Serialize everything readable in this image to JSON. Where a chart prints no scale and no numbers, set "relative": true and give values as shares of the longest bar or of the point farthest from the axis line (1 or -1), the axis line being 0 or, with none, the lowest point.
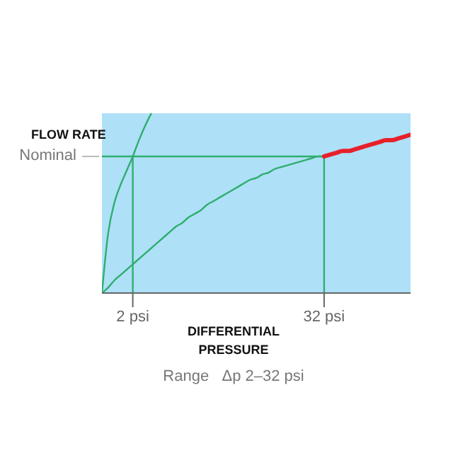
{
  "chart_data": {
    "type": "line",
    "relative": true,
    "ylabel": "FLOW RATE",
    "xlabel": "DIFFERENTIAL PRESSURE",
    "categories": [
      null,
      null,
      null,
      null,
      null,
      "2 psi",
      null,
      null,
      null,
      null,
      null,
      null,
      null,
      null,
      null,
      null,
      null,
      null,
      null,
      null,
      null,
      null,
      null,
      null,
      null,
      null,
      null,
      null,
      null,
      null,
      null,
      null,
      null,
      null,
      null,
      null,
      "32 psi",
      null,
      null,
      null,
      null,
      null,
      null,
      null,
      null,
      null,
      null,
      null,
      null,
      null,
      null
    ],
    "series": [
      {
        "color": "#2fae6e",
        "values": [
          0,
          0.33,
          0.5,
          0.6,
          0.68,
          0.76,
          0.85,
          0.93,
          1.0,
          null,
          null,
          null,
          null,
          null,
          null,
          null,
          null,
          null,
          null,
          null,
          null,
          null,
          null,
          null,
          null,
          null,
          null,
          null,
          null,
          null,
          null,
          null,
          null,
          null,
          null,
          null,
          null,
          null,
          null,
          null,
          null,
          null,
          null,
          null,
          null,
          null,
          null,
          null,
          null,
          null,
          null
        ]
      },
      {
        "color": "#2fae6e",
        "values": [
          0,
          0.03,
          0.07,
          0.1,
          0.13,
          0.16,
          0.19,
          0.22,
          0.25,
          0.28,
          0.31,
          0.34,
          0.37,
          0.39,
          0.42,
          0.44,
          0.46,
          0.49,
          0.51,
          0.53,
          0.55,
          0.57,
          0.59,
          0.61,
          0.63,
          0.64,
          0.66,
          0.67,
          0.69,
          0.7,
          0.71,
          0.72,
          0.73,
          0.74,
          0.75,
          0.76,
          0.76,
          null,
          null,
          null,
          null,
          null,
          null,
          null,
          null,
          null,
          null,
          null,
          null,
          null,
          null
        ]
      },
      {
        "color": "#e8202a",
        "values": [
          null,
          null,
          null,
          null,
          null,
          null,
          null,
          null,
          null,
          null,
          null,
          null,
          null,
          null,
          null,
          null,
          null,
          null,
          null,
          null,
          null,
          null,
          null,
          null,
          null,
          null,
          null,
          null,
          null,
          null,
          null,
          null,
          null,
          null,
          null,
          null,
          0.76,
          0.77,
          0.78,
          0.79,
          0.79,
          0.8,
          0.81,
          0.82,
          0.83,
          0.84,
          0.85,
          0.85,
          0.86,
          0.87,
          0.88
        ]
      }
    ],
    "ref_lines": [
      {
        "axis": "x",
        "value": "2 psi",
        "color": "#2fae6e"
      },
      {
        "axis": "x",
        "value": "32 psi",
        "color": "#2fae6e"
      },
      {
        "axis": "y",
        "value": 0.76,
        "label": "Nominal",
        "color": "#2fae6e"
      }
    ],
    "annotations": [
      "Range   Δp 2–32 psi"
    ]
  }
}
